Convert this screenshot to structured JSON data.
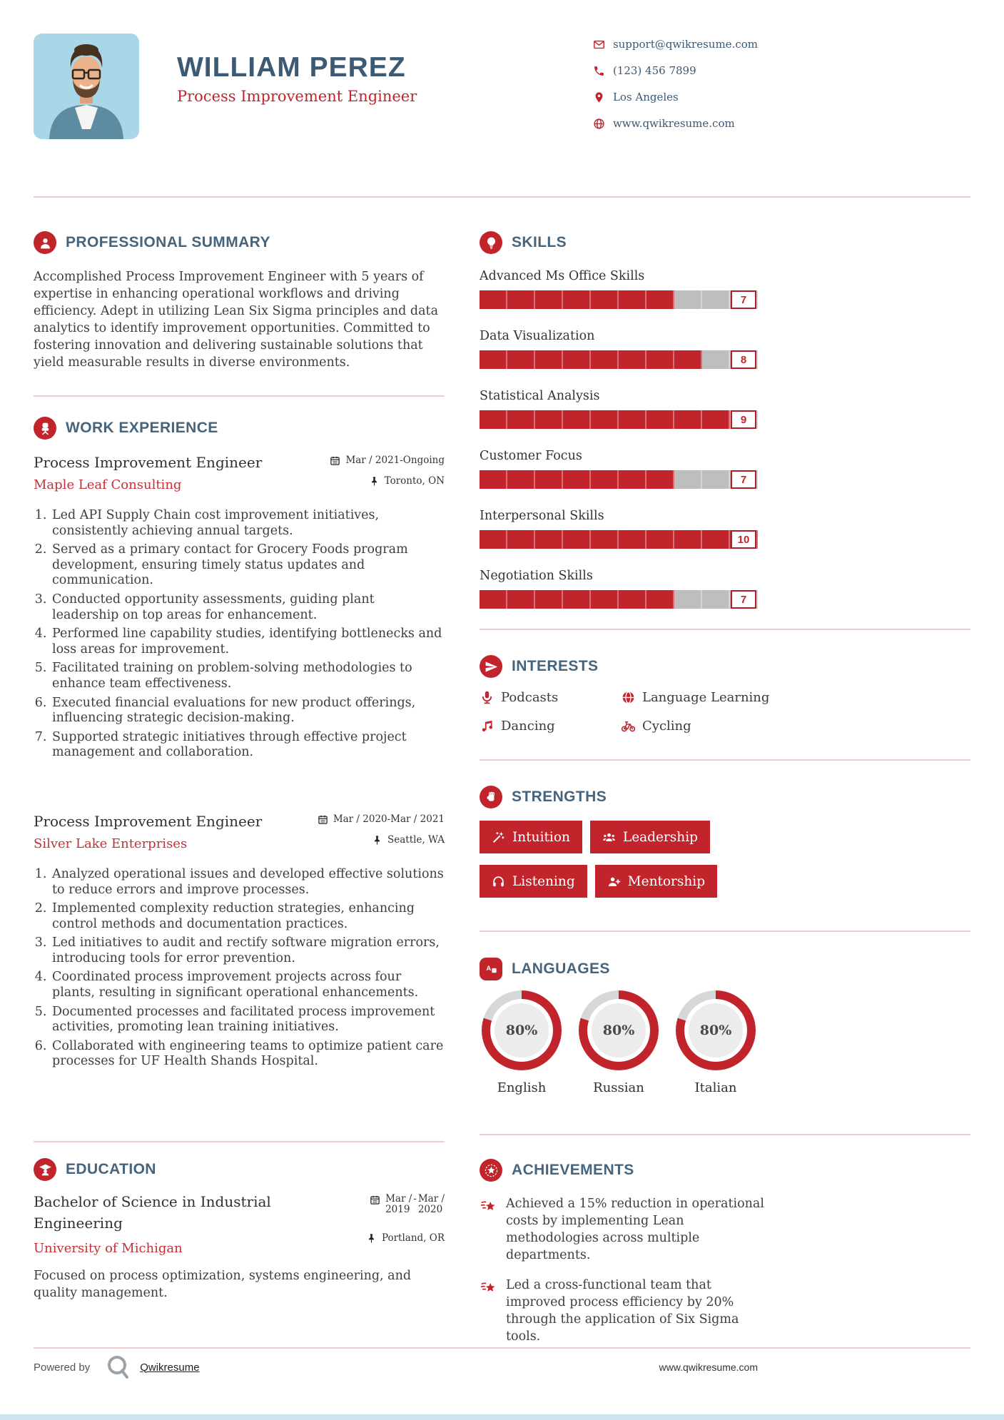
{
  "colors": {
    "accent": "#c2242c",
    "heading_blue": "#47647d",
    "name_blue": "#3d5a74",
    "company_red": "#c23138",
    "divider_pink": "#f1cbce",
    "bar_gray": "#bebebe",
    "ring_track": "#d7d7d7",
    "bottom_strip_blue": "#cfe3ef"
  },
  "header": {
    "name": "WILLIAM PEREZ",
    "title": "Process Improvement Engineer",
    "contact": [
      {
        "icon": "email-icon",
        "text": "support@qwikresume.com"
      },
      {
        "icon": "phone-icon",
        "text": "(123) 456 7899"
      },
      {
        "icon": "location-pin-icon",
        "text": "Los Angeles"
      },
      {
        "icon": "globe-icon",
        "text": "www.qwikresume.com"
      }
    ]
  },
  "summary": {
    "heading": "PROFESSIONAL SUMMARY",
    "icon": "person-icon",
    "text": "Accomplished Process Improvement Engineer with 5 years of expertise in enhancing operational workflows and driving efficiency. Adept in utilizing Lean Six Sigma principles and data analytics to identify improvement opportunities. Committed to fostering innovation and delivering sustainable solutions that yield measurable results in diverse environments."
  },
  "work": {
    "heading": "WORK EXPERIENCE",
    "icon": "office-chair-icon",
    "jobs": [
      {
        "title": "Process Improvement Engineer",
        "company": "Maple Leaf Consulting",
        "date": "Mar / 2021-Ongoing",
        "location": "Toronto, ON",
        "bullets": [
          "Led API Supply Chain cost improvement initiatives, consistently achieving annual targets.",
          "Served as a primary contact for Grocery Foods program development, ensuring timely status updates and communication.",
          "Conducted opportunity assessments, guiding plant leadership on top areas for enhancement.",
          "Performed line capability studies, identifying bottlenecks and loss areas for improvement.",
          "Facilitated training on problem-solving methodologies to enhance team effectiveness.",
          "Executed financial evaluations for new product offerings, influencing strategic decision-making.",
          "Supported strategic initiatives through effective project management and collaboration."
        ]
      },
      {
        "title": "Process Improvement Engineer",
        "company": "Silver Lake Enterprises",
        "date": "Mar / 2020-Mar / 2021",
        "location": "Seattle, WA",
        "bullets": [
          "Analyzed operational issues and developed effective solutions to reduce errors and improve processes.",
          "Implemented complexity reduction strategies, enhancing control methods and documentation practices.",
          "Led initiatives to audit and rectify software migration errors, introducing tools for error prevention.",
          "Coordinated process improvement projects across four plants, resulting in significant operational enhancements.",
          "Documented processes and facilitated process improvement activities, promoting lean training initiatives.",
          "Collaborated with engineering teams to optimize patient care processes for UF Health Shands Hospital."
        ]
      }
    ]
  },
  "education": {
    "heading": "EDUCATION",
    "icon": "graduate-icon",
    "degree": "Bachelor of Science in Industrial Engineering",
    "school": "University of Michigan",
    "date": {
      "start_top": "Mar /",
      "start_bottom": "2019",
      "sep": "-",
      "end_top": "Mar /",
      "end_bottom": "2020"
    },
    "location": "Portland, OR",
    "description": "Focused on process optimization, systems engineering, and quality management."
  },
  "skills": {
    "heading": "SKILLS",
    "icon": "lightbulb-icon",
    "max": 10,
    "items": [
      {
        "name": "Advanced Ms Office Skills",
        "score": 7
      },
      {
        "name": "Data Visualization",
        "score": 8
      },
      {
        "name": "Statistical Analysis",
        "score": 9
      },
      {
        "name": "Customer Focus",
        "score": 7
      },
      {
        "name": "Interpersonal Skills",
        "score": 10
      },
      {
        "name": "Negotiation Skills",
        "score": 7
      }
    ]
  },
  "interests": {
    "heading": "INTERESTS",
    "icon": "paper-plane-icon",
    "items": [
      {
        "icon": "microphone-icon",
        "label": "Podcasts"
      },
      {
        "icon": "globe-icon",
        "label": "Language Learning"
      },
      {
        "icon": "music-note-icon",
        "label": "Dancing"
      },
      {
        "icon": "bicycle-icon",
        "label": "Cycling"
      }
    ]
  },
  "strengths": {
    "heading": "STRENGTHS",
    "icon": "fist-icon",
    "items": [
      {
        "icon": "magic-wand-icon",
        "label": "Intuition"
      },
      {
        "icon": "team-icon",
        "label": "Leadership"
      },
      {
        "icon": "headphones-icon",
        "label": "Listening"
      },
      {
        "icon": "user-plus-icon",
        "label": "Mentorship"
      }
    ]
  },
  "languages": {
    "heading": "LANGUAGES",
    "icon": "translate-icon",
    "items": [
      {
        "name": "English",
        "percent": 80,
        "percent_label": "80%"
      },
      {
        "name": "Russian",
        "percent": 80,
        "percent_label": "80%"
      },
      {
        "name": "Italian",
        "percent": 80,
        "percent_label": "80%"
      }
    ]
  },
  "achievements": {
    "heading": "ACHIEVEMENTS",
    "icon": "star-circle-icon",
    "bullet_icon": "shooting-star-icon",
    "items": [
      "Achieved a 15% reduction in operational costs by implementing Lean methodologies across multiple departments.",
      "Led a cross-functional team that improved process efficiency by 20% through the application of Six Sigma tools."
    ]
  },
  "footer": {
    "powered_by": "Powered by",
    "brand": "Qwikresume",
    "website": "www.qwikresume.com"
  }
}
